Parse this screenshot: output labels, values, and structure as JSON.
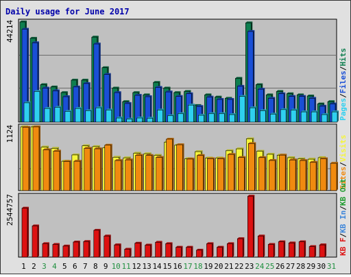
{
  "title": "Daily usage for June 2017",
  "colors": {
    "hits": "#0e7e4f",
    "files": "#1a4fd6",
    "pages": "#2fd0f0",
    "visits": "#f5f53a",
    "sites": "#f08a10",
    "kbin": "#3e86d9",
    "kbout": "#1e9c2e",
    "kbf": "#dd1111",
    "title": "#0000aa",
    "plot_bg": "#c0c0c0",
    "weekend": "#1f8f3f",
    "weekday": "#000000"
  },
  "chart_data": [
    {
      "type": "bar",
      "title": "Daily usage for June 2017",
      "categories": [
        "1",
        "2",
        "3",
        "4",
        "5",
        "6",
        "7",
        "8",
        "9",
        "10",
        "11",
        "12",
        "13",
        "14",
        "15",
        "16",
        "17",
        "18",
        "19",
        "20",
        "21",
        "22",
        "23",
        "24",
        "25",
        "26",
        "27",
        "28",
        "29",
        "30",
        "31"
      ],
      "weekend_days": [
        "3",
        "4",
        "10",
        "11",
        "17",
        "18",
        "24",
        "25",
        "31"
      ],
      "y_tick": "44214",
      "ymax": 44214,
      "legend": [
        {
          "key": "pages",
          "label": "Pages"
        },
        {
          "key": "files",
          "label": "Files"
        },
        {
          "key": "hits",
          "label": "Hits"
        }
      ],
      "series": [
        {
          "name": "Hits",
          "color_key": "hits",
          "values": [
            44214,
            37000,
            16500,
            15500,
            13000,
            18500,
            18500,
            37500,
            24000,
            15000,
            9000,
            13000,
            12000,
            17500,
            15000,
            13000,
            13500,
            7300,
            12000,
            11000,
            10500,
            19300,
            43800,
            16500,
            12000,
            13500,
            12500,
            12000,
            11500,
            8000,
            9000
          ]
        },
        {
          "name": "Files",
          "color_key": "files",
          "values": [
            41000,
            35000,
            15000,
            13800,
            11200,
            15500,
            17000,
            34500,
            21000,
            13000,
            8200,
            11800,
            11200,
            15300,
            13300,
            11300,
            12500,
            6900,
            11000,
            10000,
            10000,
            15800,
            40000,
            14500,
            10500,
            12500,
            11300,
            11300,
            10500,
            7000,
            8000
          ]
        },
        {
          "name": "Pages",
          "color_key": "pages",
          "values": [
            8500,
            13500,
            6000,
            6500,
            4700,
            6000,
            5000,
            6300,
            5300,
            1800,
            1300,
            1800,
            1700,
            5300,
            2800,
            3700,
            7500,
            3000,
            3700,
            3700,
            3300,
            11300,
            6300,
            5000,
            3500,
            5500,
            5300,
            4500,
            4500,
            3300,
            4500
          ]
        }
      ]
    },
    {
      "type": "bar",
      "categories": [
        "1",
        "2",
        "3",
        "4",
        "5",
        "6",
        "7",
        "8",
        "9",
        "10",
        "11",
        "12",
        "13",
        "14",
        "15",
        "16",
        "17",
        "18",
        "19",
        "20",
        "21",
        "22",
        "23",
        "24",
        "25",
        "26",
        "27",
        "28",
        "29",
        "30",
        "31"
      ],
      "y_tick": "1124",
      "ymax": 1124,
      "legend": [
        {
          "key": "sites",
          "label": "Sites"
        },
        {
          "key": "visits",
          "label": "Visits"
        }
      ],
      "series": [
        {
          "name": "Visits",
          "color_key": "visits",
          "values": [
            1124,
            1124,
            767,
            745,
            518,
            629,
            790,
            775,
            756,
            588,
            577,
            658,
            649,
            621,
            855,
            800,
            562,
            687,
            574,
            575,
            703,
            736,
            913,
            693,
            640,
            625,
            580,
            559,
            554,
            581,
            0
          ]
        },
        {
          "name": "Sites",
          "color_key": "sites",
          "values": [
            1115,
            1124,
            720,
            697,
            513,
            518,
            746,
            737,
            801,
            531,
            542,
            623,
            620,
            586,
            907,
            809,
            557,
            619,
            562,
            562,
            638,
            584,
            830,
            583,
            532,
            626,
            541,
            531,
            498,
            562,
            482
          ]
        }
      ]
    },
    {
      "type": "bar",
      "categories": [
        "1",
        "2",
        "3",
        "4",
        "5",
        "6",
        "7",
        "8",
        "9",
        "10",
        "11",
        "12",
        "13",
        "14",
        "15",
        "16",
        "17",
        "18",
        "19",
        "20",
        "21",
        "22",
        "23",
        "24",
        "25",
        "26",
        "27",
        "28",
        "29",
        "30",
        "31"
      ],
      "y_tick": "2544757",
      "ymax": 2544757,
      "legend": [
        {
          "key": "kbf",
          "label": "KB F"
        },
        {
          "key": "kbin",
          "label": "KB In"
        },
        {
          "key": "kbout",
          "label": "KB Out"
        }
      ],
      "series": [
        {
          "name": "KB F",
          "color_key": "kbf",
          "values": [
            2040000,
            1300000,
            560000,
            530000,
            460000,
            630000,
            650000,
            1120000,
            880000,
            510000,
            330000,
            580000,
            500000,
            620000,
            560000,
            410000,
            410000,
            290000,
            560000,
            410000,
            560000,
            770000,
            2540000,
            880000,
            530000,
            640000,
            590000,
            640000,
            440000,
            510000,
            0
          ]
        }
      ]
    }
  ]
}
